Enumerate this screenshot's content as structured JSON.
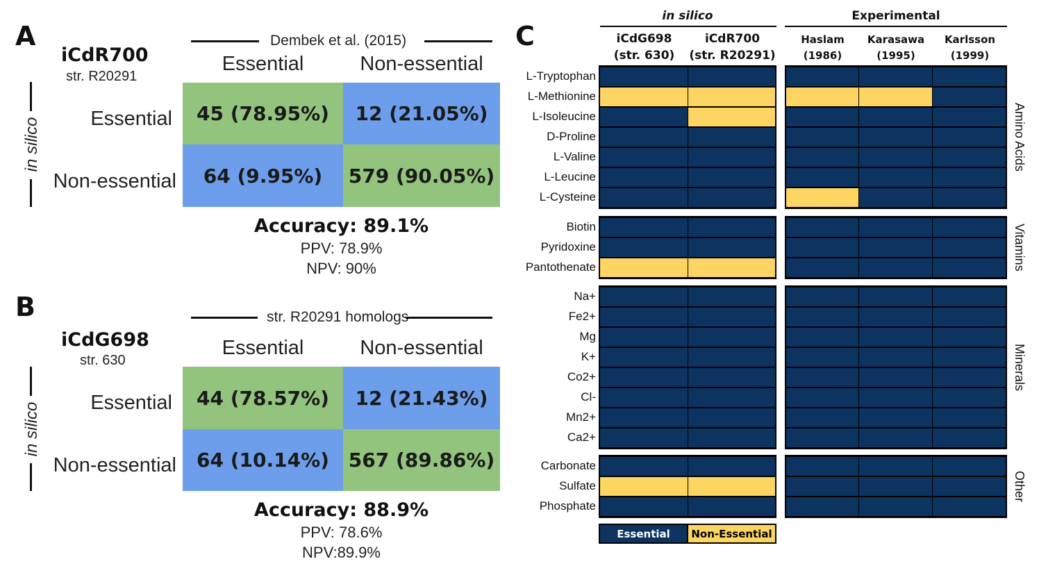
{
  "panelA": {
    "letter": "A",
    "model": "iCdR700",
    "strain": "str. R20291",
    "reference": "Dembek et al. (2015)",
    "side_label": "in silico",
    "col_labels": [
      "Essential",
      "Non-essential"
    ],
    "row_labels": [
      "Essential",
      "Non-essential"
    ],
    "cells": [
      [
        "45 (78.95%)",
        "12 (21.05%)"
      ],
      [
        "64 (9.95%)",
        "579 (90.05%)"
      ]
    ],
    "accuracy": "Accuracy: 89.1%",
    "ppv": "PPV: 78.9%",
    "npv": "NPV: 90%"
  },
  "panelB": {
    "letter": "B",
    "model": "iCdG698",
    "strain": "str. 630",
    "reference": "str. R20291 homologs",
    "side_label": "in silico",
    "col_labels": [
      "Essential",
      "Non-essential"
    ],
    "row_labels": [
      "Essential",
      "Non-essential"
    ],
    "cells": [
      [
        "44 (78.57%)",
        "12 (21.43%)"
      ],
      [
        "64 (10.14%)",
        "567 (89.86%)"
      ]
    ],
    "accuracy": "Accuracy: 88.9%",
    "ppv": "PPV: 78.6%",
    "npv": "NPV:89.9%"
  },
  "panelC": {
    "letter": "C",
    "group_insilico": "in silico",
    "group_experimental": "Experimental",
    "insilico_cols": [
      {
        "line1": "iCdG698",
        "line2": "(str. 630)"
      },
      {
        "line1": "iCdR700",
        "line2": "(str. R20291)"
      }
    ],
    "experimental_cols": [
      {
        "line1": "Haslam",
        "line2": "(1986)"
      },
      {
        "line1": "Karasawa",
        "line2": "(1995)"
      },
      {
        "line1": "Karlsson",
        "line2": "(1999)"
      }
    ],
    "colors": {
      "essential": "#0d3461",
      "non_essential": "#fdd562"
    },
    "groups": [
      {
        "name": "Amino Acids",
        "rows": [
          {
            "label": "L-Tryptophan",
            "values": [
              "E",
              "E",
              "E",
              "E",
              "E"
            ]
          },
          {
            "label": "L-Methionine",
            "values": [
              "N",
              "N",
              "N",
              "N",
              "E"
            ]
          },
          {
            "label": "L-Isoleucine",
            "values": [
              "E",
              "N",
              "E",
              "E",
              "E"
            ]
          },
          {
            "label": "D-Proline",
            "values": [
              "E",
              "E",
              "E",
              "E",
              "E"
            ]
          },
          {
            "label": "L-Valine",
            "values": [
              "E",
              "E",
              "E",
              "E",
              "E"
            ]
          },
          {
            "label": "L-Leucine",
            "values": [
              "E",
              "E",
              "E",
              "E",
              "E"
            ]
          },
          {
            "label": "L-Cysteine",
            "values": [
              "E",
              "E",
              "N",
              "E",
              "E"
            ]
          }
        ]
      },
      {
        "name": "Vitamins",
        "rows": [
          {
            "label": "Biotin",
            "values": [
              "E",
              "E",
              "E",
              "E",
              "E"
            ]
          },
          {
            "label": "Pyridoxine",
            "values": [
              "E",
              "E",
              "E",
              "E",
              "E"
            ]
          },
          {
            "label": "Pantothenate",
            "values": [
              "N",
              "N",
              "E",
              "E",
              "E"
            ]
          }
        ]
      },
      {
        "name": "Minerals",
        "rows": [
          {
            "label": "Na+",
            "values": [
              "E",
              "E",
              "E",
              "E",
              "E"
            ]
          },
          {
            "label": "Fe2+",
            "values": [
              "E",
              "E",
              "E",
              "E",
              "E"
            ]
          },
          {
            "label": "Mg",
            "values": [
              "E",
              "E",
              "E",
              "E",
              "E"
            ]
          },
          {
            "label": "K+",
            "values": [
              "E",
              "E",
              "E",
              "E",
              "E"
            ]
          },
          {
            "label": "Co2+",
            "values": [
              "E",
              "E",
              "E",
              "E",
              "E"
            ]
          },
          {
            "label": "Cl-",
            "values": [
              "E",
              "E",
              "E",
              "E",
              "E"
            ]
          },
          {
            "label": "Mn2+",
            "values": [
              "E",
              "E",
              "E",
              "E",
              "E"
            ]
          },
          {
            "label": "Ca2+",
            "values": [
              "E",
              "E",
              "E",
              "E",
              "E"
            ]
          }
        ]
      },
      {
        "name": "Other",
        "rows": [
          {
            "label": "Carbonate",
            "values": [
              "E",
              "E",
              "E",
              "E",
              "E"
            ]
          },
          {
            "label": "Sulfate",
            "values": [
              "N",
              "N",
              "E",
              "E",
              "E"
            ]
          },
          {
            "label": "Phosphate",
            "values": [
              "E",
              "E",
              "E",
              "E",
              "E"
            ]
          }
        ]
      }
    ],
    "legend": {
      "essential": "Essential",
      "non_essential": "Non-Essential"
    }
  }
}
